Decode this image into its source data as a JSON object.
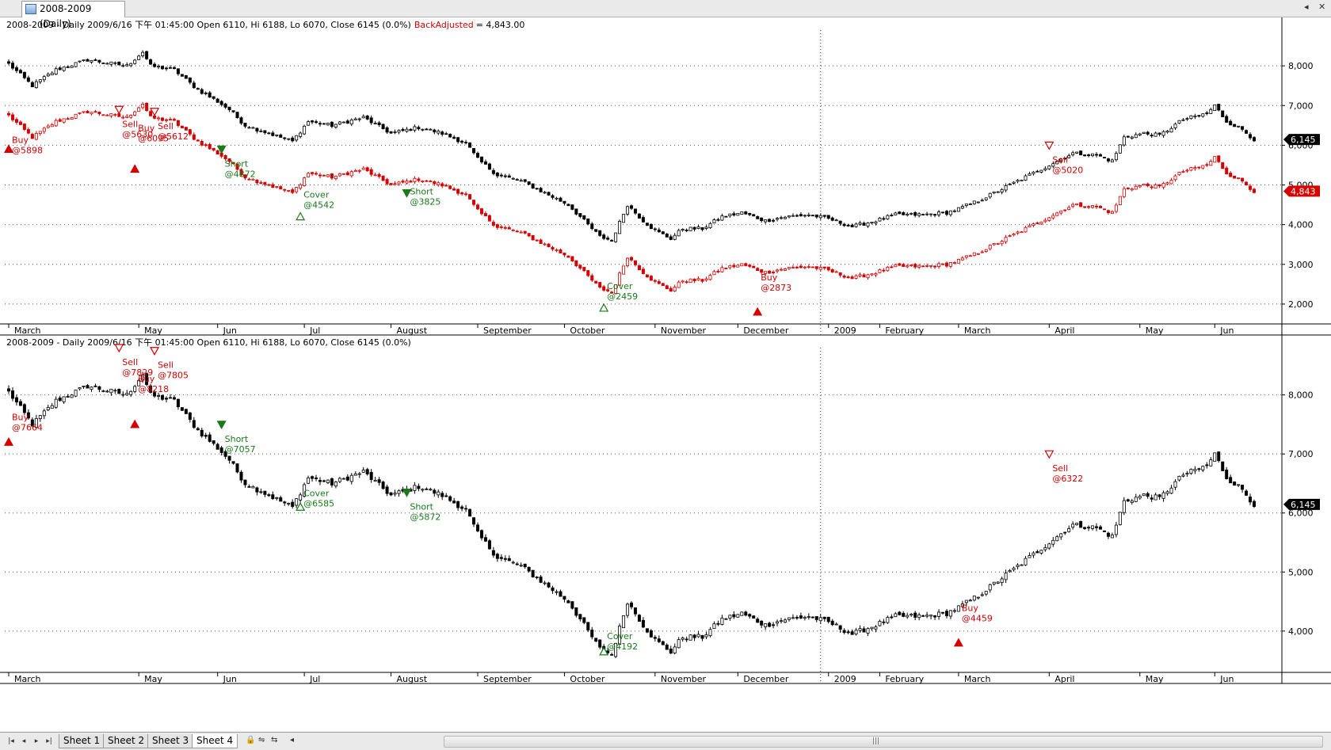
{
  "window": {
    "tab_title": "2008-2009 (Daily)",
    "pin_icon": "pin-icon",
    "close_icon": "close-icon"
  },
  "colors": {
    "bull": "#000000",
    "bear": "#000000",
    "red": "#d40000",
    "green": "#1a7a1a",
    "grid": "#555555"
  },
  "x_axis": {
    "months": [
      {
        "label": "March",
        "i": 0
      },
      {
        "label": "May",
        "i": 33
      },
      {
        "label": "Jun",
        "i": 53
      },
      {
        "label": "Jul",
        "i": 75
      },
      {
        "label": "August",
        "i": 97
      },
      {
        "label": "September",
        "i": 119
      },
      {
        "label": "October",
        "i": 141
      },
      {
        "label": "November",
        "i": 164
      },
      {
        "label": "December",
        "i": 185
      },
      {
        "label": "2009",
        "i": 208
      },
      {
        "label": "February",
        "i": 221
      },
      {
        "label": "March",
        "i": 241
      },
      {
        "label": "April",
        "i": 264
      },
      {
        "label": "May",
        "i": 287
      },
      {
        "label": "Jun",
        "i": 306
      }
    ],
    "divider_i": 206
  },
  "panes": [
    {
      "header": "2008-2009 - Daily 2009/6/16 下午 01:45:00 Open 6110, Hi 6188, Lo 6070, Close 6145 (0.0%)",
      "header_extra_label": "BackAdjusted",
      "header_extra_value": "= 4,843.00",
      "ylim": [
        1500,
        8900
      ],
      "yticks": [
        {
          "v": 2000,
          "label": "2,000"
        },
        {
          "v": 3000,
          "label": "3,000"
        },
        {
          "v": 4000,
          "label": "4,000"
        },
        {
          "v": 5000,
          "label": "5,000"
        },
        {
          "v": 6000,
          "label": "6,000"
        },
        {
          "v": 7000,
          "label": "7,000"
        },
        {
          "v": 8000,
          "label": "8,000"
        }
      ],
      "last_badges": [
        {
          "label": "6,145",
          "v": 6145,
          "color": "#000000"
        },
        {
          "label": "4,843",
          "v": 4843,
          "color": "#d40000"
        }
      ],
      "series": [
        {
          "name": "main",
          "offset": 0,
          "color": "#000000"
        },
        {
          "name": "BackAdjusted",
          "offset": -1302,
          "color": "#d40000"
        }
      ],
      "signals": [
        {
          "kind": "buy",
          "i": 0,
          "label": "Buy",
          "price": "@5898",
          "v": 5900,
          "color": "#d40000",
          "text_dx": 0,
          "text_dy": -8
        },
        {
          "kind": "sell",
          "i": 28,
          "label": "Sell",
          "price": "@5630",
          "v": 6900,
          "color": "#d40000",
          "text_dx": 0,
          "text_dy": 22
        },
        {
          "kind": "buy",
          "i": 32,
          "label": "Buy",
          "price": "@6095",
          "v": 5400,
          "color": "#d40000",
          "text_dx": 0,
          "text_dy": -48
        },
        {
          "kind": "sell",
          "i": 37,
          "label": "Sell",
          "price": "@5612",
          "v": 6850,
          "color": "#d40000",
          "text_dx": 0,
          "text_dy": 22
        },
        {
          "kind": "short",
          "i": 54,
          "label": "Short",
          "price": "@4872",
          "v": 5900,
          "color": "#1a7a1a",
          "text_dx": 0,
          "text_dy": 22
        },
        {
          "kind": "cover",
          "i": 74,
          "label": "Cover",
          "price": "@4542",
          "v": 4200,
          "color": "#1a7a1a",
          "text_dx": 0,
          "text_dy": -24
        },
        {
          "kind": "short",
          "i": 101,
          "label": "Short",
          "price": "@3825",
          "v": 4800,
          "color": "#1a7a1a",
          "text_dx": 0,
          "text_dy": 2
        },
        {
          "kind": "cover",
          "i": 151,
          "label": "Cover",
          "price": "@2459",
          "v": 1900,
          "color": "#1a7a1a",
          "text_dx": 0,
          "text_dy": -24
        },
        {
          "kind": "buy",
          "i": 190,
          "label": "Buy",
          "price": "@2873",
          "v": 1800,
          "color": "#d40000",
          "text_dx": 0,
          "text_dy": -40
        },
        {
          "kind": "sell",
          "i": 264,
          "label": "Sell",
          "price": "@5020",
          "v": 6000,
          "color": "#d40000",
          "text_dx": 0,
          "text_dy": 22
        }
      ]
    },
    {
      "header": "2008-2009 - Daily 2009/6/16 下午 01:45:00 Open 6110, Hi 6188, Lo 6070, Close 6145 (0.0%)",
      "header_extra_label": "",
      "header_extra_value": "",
      "ylim": [
        3300,
        8800
      ],
      "yticks": [
        {
          "v": 4000,
          "label": "4,000"
        },
        {
          "v": 5000,
          "label": "5,000"
        },
        {
          "v": 6000,
          "label": "6,000"
        },
        {
          "v": 7000,
          "label": "7,000"
        },
        {
          "v": 8000,
          "label": "8,000"
        }
      ],
      "last_badges": [
        {
          "label": "6,145",
          "v": 6145,
          "color": "#000000"
        }
      ],
      "series": [
        {
          "name": "main",
          "offset": 0,
          "color": "#000000"
        }
      ],
      "signals": [
        {
          "kind": "buy",
          "i": 0,
          "label": "Buy",
          "price": "@7664",
          "v": 7200,
          "color": "#d40000",
          "text_dx": 0,
          "text_dy": -28
        },
        {
          "kind": "sell",
          "i": 28,
          "label": "Sell",
          "price": "@7829",
          "v": 8800,
          "color": "#d40000",
          "text_dx": 0,
          "text_dy": 22
        },
        {
          "kind": "buy",
          "i": 32,
          "label": "Buy",
          "price": "@8218",
          "v": 7500,
          "color": "#d40000",
          "text_dx": 0,
          "text_dy": -54
        },
        {
          "kind": "sell",
          "i": 37,
          "label": "Sell",
          "price": "@7805",
          "v": 8750,
          "color": "#d40000",
          "text_dx": 0,
          "text_dy": 22
        },
        {
          "kind": "short",
          "i": 54,
          "label": "Short",
          "price": "@7057",
          "v": 7500,
          "color": "#1a7a1a",
          "text_dx": 0,
          "text_dy": 22
        },
        {
          "kind": "cover",
          "i": 74,
          "label": "Cover",
          "price": "@6585",
          "v": 6100,
          "color": "#1a7a1a",
          "text_dx": 0,
          "text_dy": -14
        },
        {
          "kind": "short",
          "i": 101,
          "label": "Short",
          "price": "@5872",
          "v": 6350,
          "color": "#1a7a1a",
          "text_dx": 0,
          "text_dy": 22
        },
        {
          "kind": "cover",
          "i": 151,
          "label": "Cover",
          "price": "@4192",
          "v": 3650,
          "color": "#1a7a1a",
          "text_dx": 0,
          "text_dy": -16
        },
        {
          "kind": "buy",
          "i": 241,
          "label": "Buy",
          "price": "@4459",
          "v": 3800,
          "color": "#d40000",
          "text_dx": 0,
          "text_dy": -40
        },
        {
          "kind": "sell",
          "i": 264,
          "label": "Sell",
          "price": "@6322",
          "v": 7000,
          "color": "#d40000",
          "text_dx": 0,
          "text_dy": 22
        }
      ]
    }
  ],
  "price_path": {
    "anchors": [
      [
        0,
        8050
      ],
      [
        6,
        7500
      ],
      [
        12,
        7900
      ],
      [
        20,
        8150
      ],
      [
        30,
        8000
      ],
      [
        34,
        8350
      ],
      [
        36,
        8000
      ],
      [
        42,
        7900
      ],
      [
        48,
        7400
      ],
      [
        53,
        7100
      ],
      [
        56,
        6900
      ],
      [
        60,
        6500
      ],
      [
        66,
        6300
      ],
      [
        72,
        6100
      ],
      [
        76,
        6600
      ],
      [
        82,
        6500
      ],
      [
        90,
        6700
      ],
      [
        97,
        6300
      ],
      [
        104,
        6450
      ],
      [
        110,
        6300
      ],
      [
        116,
        6050
      ],
      [
        119,
        5650
      ],
      [
        124,
        5250
      ],
      [
        130,
        5100
      ],
      [
        136,
        4800
      ],
      [
        142,
        4500
      ],
      [
        146,
        4100
      ],
      [
        150,
        3700
      ],
      [
        153,
        3600
      ],
      [
        157,
        4500
      ],
      [
        161,
        4100
      ],
      [
        164,
        3850
      ],
      [
        168,
        3650
      ],
      [
        171,
        3900
      ],
      [
        176,
        3900
      ],
      [
        181,
        4200
      ],
      [
        186,
        4300
      ],
      [
        192,
        4100
      ],
      [
        197,
        4200
      ],
      [
        203,
        4250
      ],
      [
        208,
        4150
      ],
      [
        214,
        3950
      ],
      [
        220,
        4100
      ],
      [
        225,
        4250
      ],
      [
        232,
        4250
      ],
      [
        238,
        4300
      ],
      [
        241,
        4400
      ],
      [
        246,
        4600
      ],
      [
        252,
        4900
      ],
      [
        258,
        5200
      ],
      [
        264,
        5500
      ],
      [
        270,
        5800
      ],
      [
        276,
        5750
      ],
      [
        280,
        5600
      ],
      [
        283,
        6200
      ],
      [
        288,
        6300
      ],
      [
        292,
        6250
      ],
      [
        298,
        6650
      ],
      [
        304,
        6800
      ],
      [
        306,
        7000
      ],
      [
        309,
        6600
      ],
      [
        313,
        6400
      ],
      [
        316,
        6145
      ]
    ],
    "count": 317
  },
  "sheets": [
    {
      "label": "Sheet 1"
    },
    {
      "label": "Sheet 2"
    },
    {
      "label": "Sheet 3"
    },
    {
      "label": "Sheet 4",
      "active": true
    }
  ]
}
